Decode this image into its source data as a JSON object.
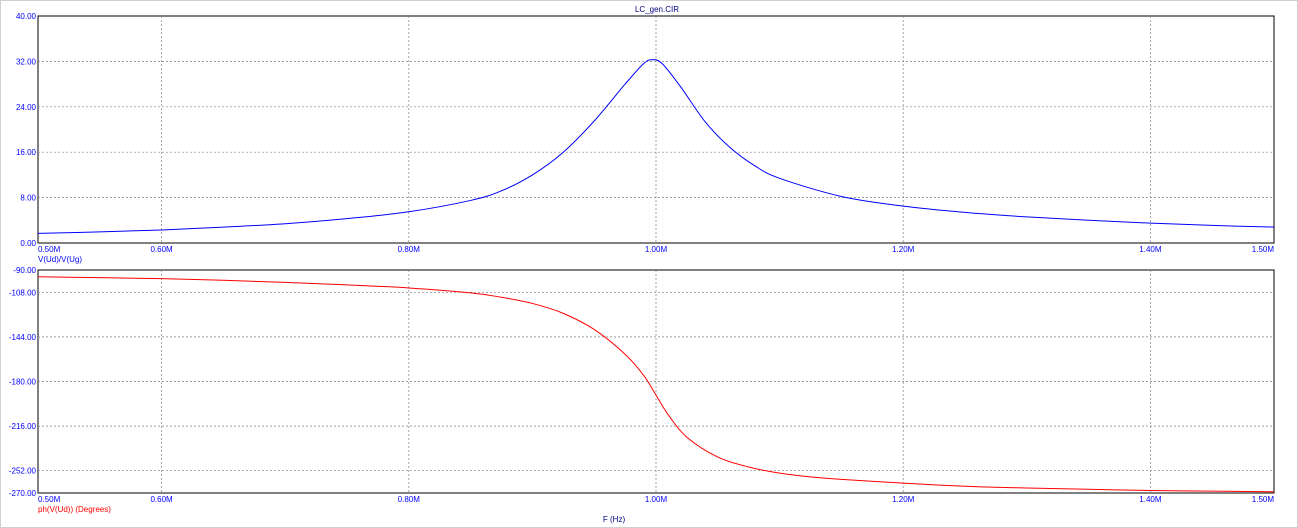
{
  "window_title": "LC_gen.CIR",
  "colors": {
    "mag": "#0000ff",
    "phase": "#ff0000",
    "grid": "#808080",
    "axis": "#000000",
    "text_x": "#000080"
  },
  "chart_data": [
    {
      "type": "line",
      "x_ticks": [
        "0.50M",
        "0.60M",
        "0.80M",
        "1.00M",
        "1.20M",
        "1.40M",
        "1.50M"
      ],
      "x_tick_values": [
        500000,
        600000,
        800000,
        1000000,
        1200000,
        1400000,
        1500000
      ],
      "xlim": [
        500000,
        1500000
      ],
      "y_ticks": [
        "40.00",
        "32.00",
        "24.00",
        "16.00",
        "8.00",
        "0.00"
      ],
      "y_tick_values": [
        40,
        32,
        24,
        16,
        8,
        0
      ],
      "ylim": [
        0,
        40
      ],
      "grid": true,
      "series": [
        {
          "name": "V(Ud)/V(Ug)",
          "x": [
            500000,
            550000,
            600000,
            650000,
            700000,
            750000,
            800000,
            850000,
            875000,
            900000,
            925000,
            950000,
            975000,
            990000,
            997000,
            1005000,
            1020000,
            1040000,
            1060000,
            1080000,
            1100000,
            1150000,
            1200000,
            1250000,
            1300000,
            1350000,
            1400000,
            1450000,
            1500000
          ],
          "y": [
            1.7,
            1.95,
            2.3,
            2.8,
            3.4,
            4.3,
            5.5,
            7.5,
            9.2,
            12.0,
            16.0,
            21.5,
            28.0,
            31.6,
            32.3,
            31.6,
            27.5,
            21.3,
            16.8,
            13.6,
            11.4,
            8.2,
            6.5,
            5.4,
            4.6,
            4.0,
            3.5,
            3.1,
            2.8
          ]
        }
      ]
    },
    {
      "type": "line",
      "x_ticks": [
        "0.50M",
        "0.60M",
        "0.80M",
        "1.00M",
        "1.20M",
        "1.40M",
        "1.50M"
      ],
      "x_tick_values": [
        500000,
        600000,
        800000,
        1000000,
        1200000,
        1400000,
        1500000
      ],
      "xlim": [
        500000,
        1500000
      ],
      "xlabel": "F (Hz)",
      "y_ticks": [
        "-90.00",
        "-108.00",
        "-144.00",
        "-180.00",
        "-216.00",
        "-252.00",
        "-270.00"
      ],
      "y_tick_values": [
        -90,
        -108,
        -144,
        -180,
        -216,
        -252,
        -270
      ],
      "ylim": [
        -270,
        -90
      ],
      "grid": true,
      "series": [
        {
          "name": "ph(V(Ud)) (Degrees)",
          "x": [
            500000,
            550000,
            600000,
            650000,
            700000,
            750000,
            800000,
            850000,
            875000,
            900000,
            925000,
            950000,
            975000,
            990000,
            1000000,
            1010000,
            1025000,
            1050000,
            1075000,
            1100000,
            1125000,
            1150000,
            1200000,
            1250000,
            1300000,
            1350000,
            1400000,
            1450000,
            1500000
          ],
          "y": [
            -95.5,
            -96.2,
            -97.0,
            -98.3,
            -100.0,
            -102.0,
            -104.5,
            -108.5,
            -112.0,
            -117.0,
            -125.0,
            -138.0,
            -158.0,
            -175.0,
            -191.0,
            -207.0,
            -225.0,
            -241.0,
            -249.0,
            -254.0,
            -257.0,
            -259.0,
            -262.0,
            -264.5,
            -266.0,
            -267.0,
            -268.0,
            -268.5,
            -269.0
          ]
        }
      ]
    }
  ]
}
